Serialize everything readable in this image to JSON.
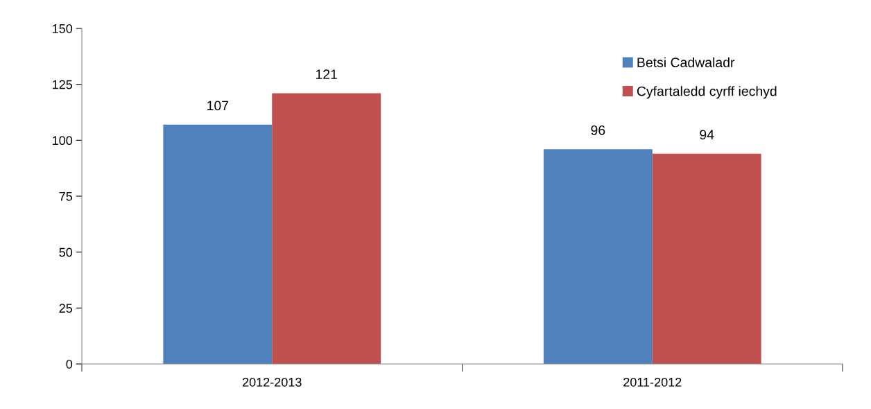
{
  "chart_data": {
    "type": "bar",
    "categories": [
      "2012-2013",
      "2011-2012"
    ],
    "series": [
      {
        "name": "Betsi Cadwaladr",
        "color": "#4f81bd",
        "values": [
          107,
          96
        ]
      },
      {
        "name": "Cyfartaledd cyrff iechyd",
        "color": "#c0504d",
        "values": [
          121,
          94
        ]
      }
    ],
    "ylim": [
      0,
      150
    ],
    "yticks": [
      0,
      25,
      50,
      75,
      100,
      125,
      150
    ],
    "grid": false,
    "legend": "top right",
    "data_labels": true
  }
}
